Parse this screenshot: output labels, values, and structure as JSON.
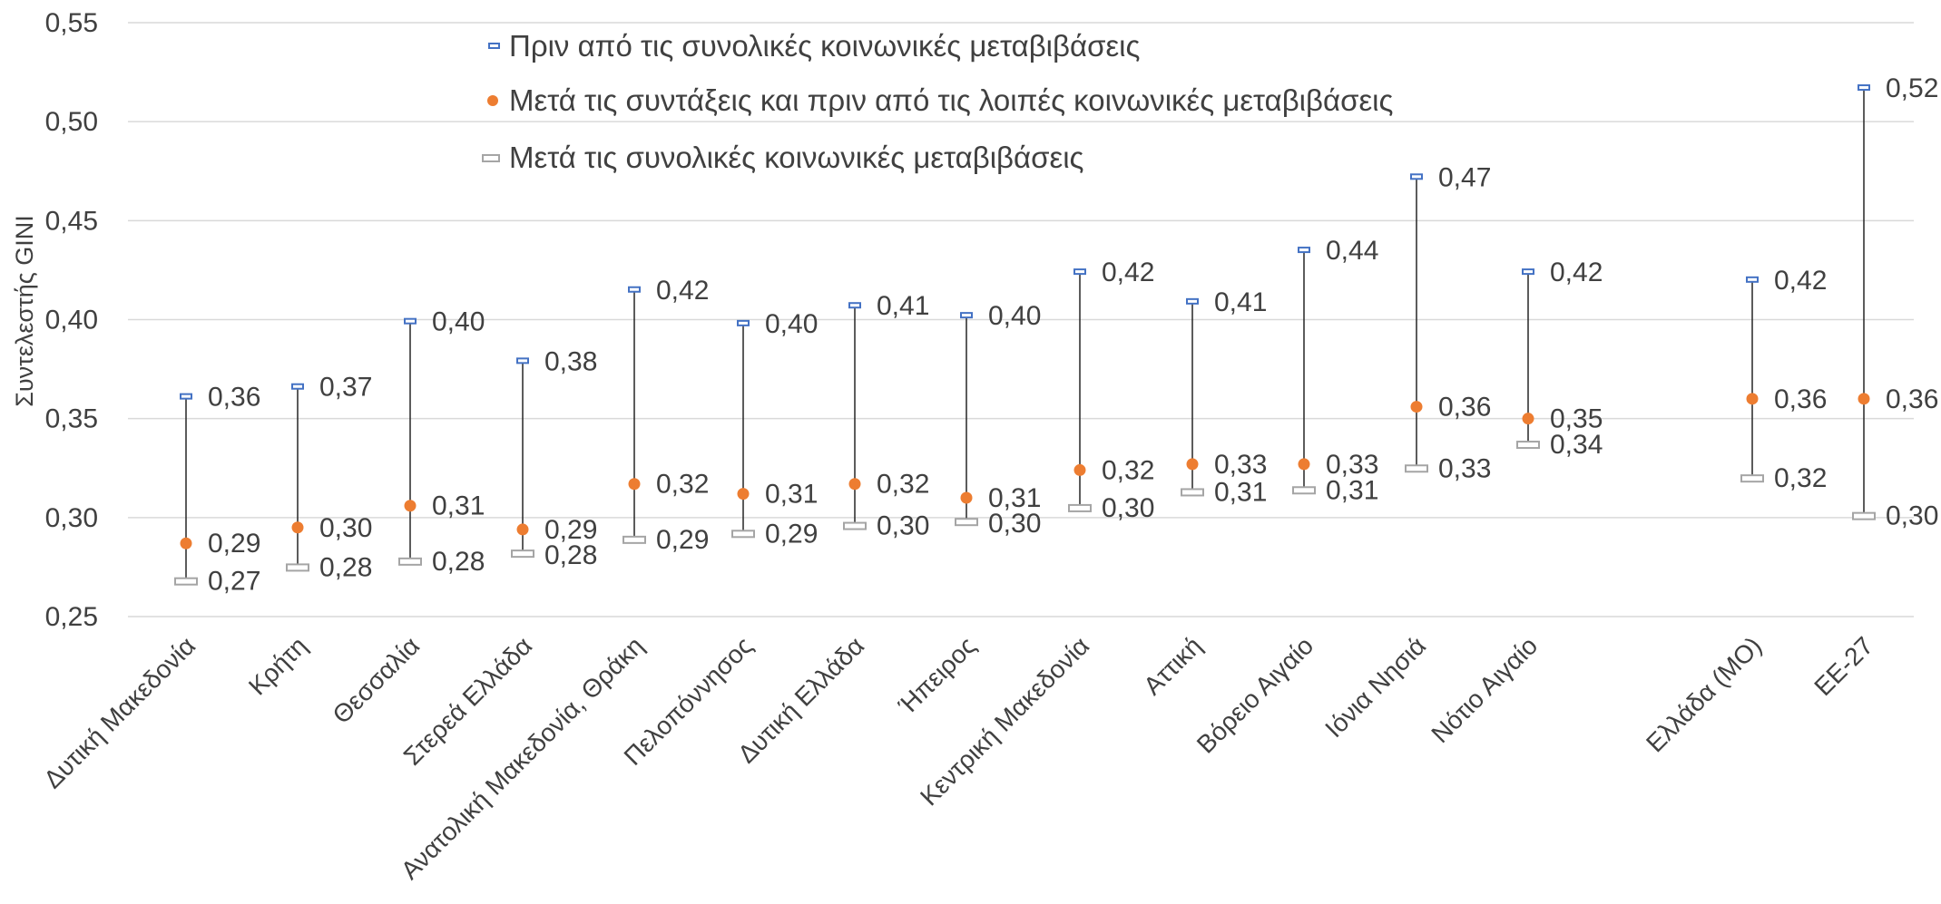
{
  "chart_data": {
    "type": "scatter",
    "title": "",
    "xlabel": "",
    "ylabel": "Συντελεστής GINI",
    "ylim": [
      0.25,
      0.55
    ],
    "yticks": [
      "0,25",
      "0,30",
      "0,35",
      "0,40",
      "0,45",
      "0,50",
      "0,55"
    ],
    "grid": true,
    "legend_position": "top",
    "categories": [
      "Δυτική Μακεδονία",
      "Κρήτη",
      "Θεσσαλία",
      "Στερεά Ελλάδα",
      "Ανατολική Μακεδονία, Θράκη",
      "Πελοπόννησος",
      "Δυτική Ελλάδα",
      "Ήπειρος",
      "Κεντρική Μακεδονία",
      "Αττική",
      "Βόρειο Αιγαίο",
      "Ιόνια Νησιά",
      "Νότιο Αιγαίο",
      "Ελλάδα (ΜΟ)",
      "ΕΕ-27"
    ],
    "series": [
      {
        "name": "Πριν από τις συνολικές κοινωνικές μεταβιβάσεις",
        "color": "#4472C4",
        "marker": "dash-blue",
        "values": [
          0.361,
          0.366,
          0.399,
          0.379,
          0.415,
          0.398,
          0.407,
          0.402,
          0.424,
          0.409,
          0.435,
          0.472,
          0.424,
          0.42,
          0.517
        ],
        "labels": [
          "0,36",
          "0,37",
          "0,40",
          "0,38",
          "0,42",
          "0,40",
          "0,41",
          "0,40",
          "0,42",
          "0,41",
          "0,44",
          "0,47",
          "0,42",
          "0,42",
          "0,52"
        ]
      },
      {
        "name": "Μετά τις συντάξεις και πριν από τις λοιπές κοινωνικές μεταβιβάσεις",
        "color": "#ED7D31",
        "marker": "dot-orange",
        "values": [
          0.287,
          0.295,
          0.306,
          0.294,
          0.317,
          0.312,
          0.317,
          0.31,
          0.324,
          0.327,
          0.327,
          0.356,
          0.35,
          0.36,
          0.36
        ],
        "labels": [
          "0,29",
          "0,30",
          "0,31",
          "0,29",
          "0,32",
          "0,31",
          "0,32",
          "0,31",
          "0,32",
          "0,33",
          "0,33",
          "0,36",
          "0,35",
          "0,36",
          "0,36"
        ]
      },
      {
        "name": "Μετά τις συνολικές κοινωνικές μεταβιβάσεις",
        "color": "#A5A5A5",
        "marker": "box-gray",
        "values": [
          0.268,
          0.275,
          0.278,
          0.282,
          0.289,
          0.292,
          0.296,
          0.298,
          0.305,
          0.313,
          0.314,
          0.325,
          0.337,
          0.32,
          0.301
        ],
        "labels": [
          "0,27",
          "0,28",
          "0,28",
          "0,28",
          "0,29",
          "0,29",
          "0,30",
          "0,30",
          "0,30",
          "0,31",
          "0,31",
          "0,33",
          "0,34",
          "0,32",
          "0,30"
        ]
      }
    ]
  }
}
